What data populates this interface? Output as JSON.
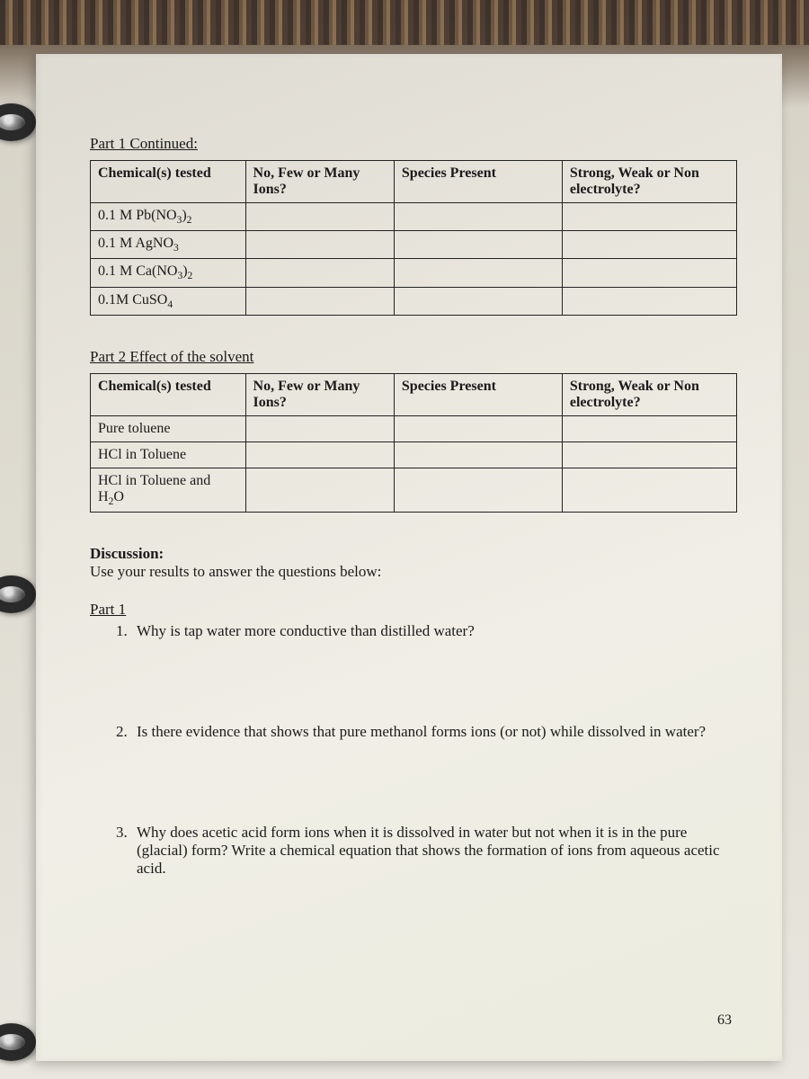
{
  "page_number": "63",
  "part1": {
    "title": "Part 1 Continued:",
    "columns": [
      "Chemical(s) tested",
      "No, Few or Many Ions?",
      "Species Present",
      "Strong, Weak or Non electrolyte?"
    ],
    "rows": [
      {
        "chem_html": "0.1 M Pb(NO<span class='sub'>3</span>)<span class='sub'>2</span>",
        "c2": "",
        "c3": "",
        "c4": ""
      },
      {
        "chem_html": "0.1 M AgNO<span class='sub'>3</span>",
        "c2": "",
        "c3": "",
        "c4": ""
      },
      {
        "chem_html": "0.1 M Ca(NO<span class='sub'>3</span>)<span class='sub'>2</span>",
        "c2": "",
        "c3": "",
        "c4": ""
      },
      {
        "chem_html": "0.1M CuSO<span class='sub'>4</span>",
        "c2": "",
        "c3": "",
        "c4": ""
      }
    ]
  },
  "part2": {
    "title": "Part 2 Effect of the solvent",
    "columns": [
      "Chemical(s) tested",
      "No, Few or Many Ions?",
      "Species Present",
      "Strong, Weak or Non electrolyte?"
    ],
    "rows": [
      {
        "chem_html": "Pure toluene",
        "c2": "",
        "c3": "",
        "c4": ""
      },
      {
        "chem_html": "HCl in Toluene",
        "c2": "",
        "c3": "",
        "c4": ""
      },
      {
        "chem_html": "HCl in Toluene and H<span class='sub'>2</span>O",
        "c2": "",
        "c3": "",
        "c4": ""
      }
    ]
  },
  "discussion": {
    "head": "Discussion:",
    "sub": "Use your results to answer the questions below:"
  },
  "questions": {
    "part_label": "Part 1",
    "items": [
      "Why is tap water more conductive than distilled water?",
      "Is there evidence that shows that pure methanol forms ions (or not) while dissolved in water?",
      "Why does acetic acid form ions when it is dissolved in water but not when it is in the pure (glacial) form? Write a chemical equation that shows the formation of ions from aqueous acetic acid."
    ]
  }
}
